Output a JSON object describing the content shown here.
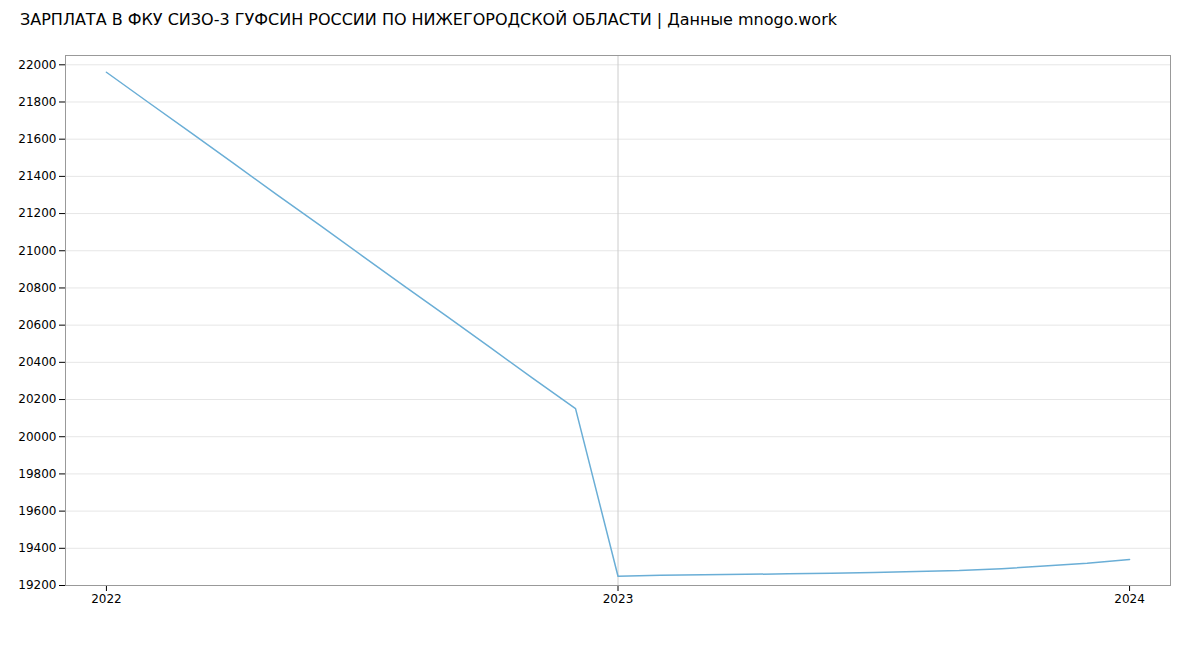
{
  "chart_data": {
    "type": "line",
    "title": "ЗАРПЛАТА В ФКУ СИЗО-3 ГУФСИН РОССИИ ПО НИЖЕГОРОДСКОЙ ОБЛАСТИ | Данные mnogo.work",
    "x": [
      2022.0,
      2022.083,
      2022.167,
      2022.25,
      2022.333,
      2022.417,
      2022.5,
      2022.583,
      2022.667,
      2022.75,
      2022.833,
      2022.917,
      2023.0,
      2023.083,
      2023.167,
      2023.25,
      2023.333,
      2023.417,
      2023.5,
      2023.583,
      2023.667,
      2023.75,
      2023.833,
      2023.917,
      2024.0
    ],
    "values": [
      21960,
      21796,
      21631,
      21467,
      21302,
      21138,
      20973,
      20809,
      20644,
      20480,
      20315,
      20151,
      19250,
      19255,
      19258,
      19260,
      19263,
      19266,
      19270,
      19275,
      19280,
      19290,
      19305,
      19320,
      19340
    ],
    "color": "#6aaed6",
    "xlim": [
      2021.92,
      2024.08
    ],
    "xticks": [
      2022,
      2023,
      2024
    ],
    "ylim": [
      19200,
      22050
    ],
    "yticks": [
      19200,
      19400,
      19600,
      19800,
      20000,
      20200,
      20400,
      20600,
      20800,
      21000,
      21200,
      21400,
      21600,
      21800,
      22000
    ],
    "vline": 2023,
    "grid": true
  }
}
